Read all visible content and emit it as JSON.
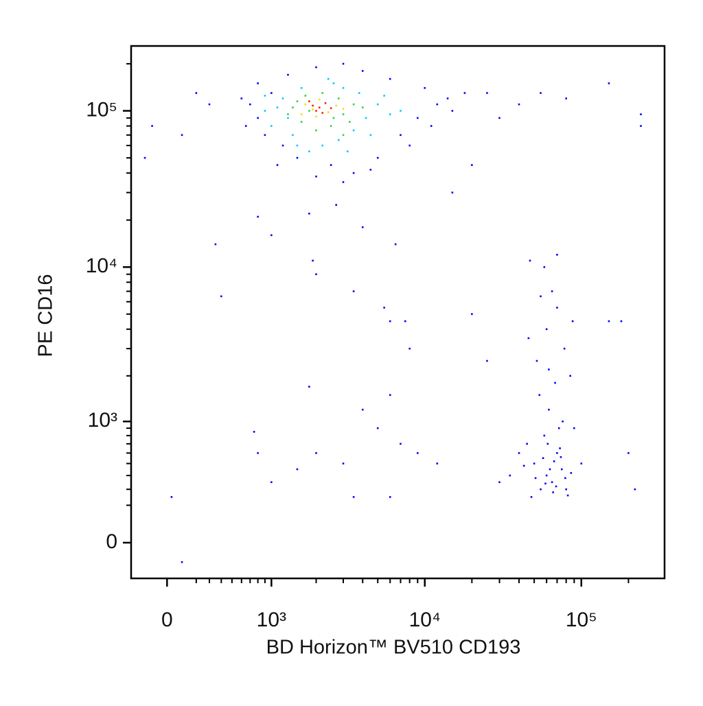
{
  "chart_data": {
    "type": "scatter",
    "x_label": "BD Horizon™ BV510 CD193",
    "y_label": "PE CD16",
    "xscale": "biexponential",
    "yscale": "biexponential",
    "xlim": [
      -250,
      340000
    ],
    "ylim": [
      -190,
      260000
    ],
    "xticks": [
      0,
      {
        "value": 1000,
        "label": "10³"
      },
      {
        "value": 10000,
        "label": "10⁴"
      },
      {
        "value": 100000,
        "label": "10⁵"
      }
    ],
    "yticks": [
      0,
      {
        "value": 1000,
        "label": "10³"
      },
      {
        "value": 10000,
        "label": "10⁴"
      },
      {
        "value": 100000,
        "label": "10⁵"
      }
    ],
    "xminorticks": [
      200,
      300,
      400,
      500,
      600,
      700,
      800,
      900,
      2000,
      3000,
      4000,
      5000,
      6000,
      7000,
      8000,
      9000,
      20000,
      30000,
      40000,
      50000,
      60000,
      70000,
      80000,
      90000,
      200000
    ],
    "yminorticks": [
      200,
      300,
      400,
      500,
      600,
      700,
      800,
      900,
      2000,
      3000,
      4000,
      5000,
      6000,
      7000,
      8000,
      9000,
      20000,
      30000,
      40000,
      50000,
      60000,
      70000,
      80000,
      90000,
      200000
    ],
    "series": [
      {
        "color": "#0000ff",
        "x": [
          700,
          800,
          900,
          1000,
          1200,
          1500,
          2500,
          3500,
          5000,
          7000,
          9000,
          12000,
          15000,
          18000,
          10000,
          6000,
          4000,
          3000,
          2000,
          1300,
          800,
          600,
          650,
          1100,
          2000,
          3000,
          4500,
          8000,
          11000,
          14000,
          25000,
          30000,
          40000,
          55000,
          80000,
          150000,
          240000,
          240000,
          200,
          300,
          -100,
          -150,
          100,
          1800,
          2700,
          4000,
          6500,
          1900,
          800,
          350,
          1000,
          15000,
          20000,
          50000,
          60000,
          70000,
          55000,
          65000,
          75000,
          80000,
          45000,
          58000,
          72000,
          62000,
          68000,
          52000,
          78000,
          60000,
          70000,
          65000,
          55000,
          85000,
          90000,
          40000,
          35000,
          30000,
          100000,
          48000,
          82000,
          66000,
          54000,
          76000,
          88000,
          46000,
          58000,
          70000,
          47000,
          62000,
          73000,
          57000,
          67000,
          61000,
          79000,
          5500,
          6000,
          7500,
          8000,
          6000,
          7000,
          5000,
          4000,
          3000,
          2000,
          1500,
          1000,
          800,
          750,
          3500,
          6000,
          9000,
          12000,
          25000,
          20000,
          150000,
          180000,
          200000,
          220000,
          30,
          100,
          2000,
          3500,
          1800,
          400,
          63000,
          69000,
          51000,
          74000,
          59000,
          86000,
          43000
        ],
        "values": [
          110000,
          90000,
          70000,
          130000,
          60000,
          50000,
          45000,
          40000,
          50000,
          70000,
          90000,
          110000,
          100000,
          130000,
          140000,
          160000,
          180000,
          200000,
          190000,
          170000,
          150000,
          120000,
          80000,
          45000,
          38000,
          35000,
          42000,
          60000,
          80000,
          120000,
          130000,
          90000,
          110000,
          130000,
          120000,
          150000,
          95000,
          80000,
          130000,
          110000,
          80000,
          50000,
          70000,
          22000,
          25000,
          18000,
          14000,
          11000,
          21000,
          14000,
          16000,
          30000,
          45000,
          500,
          400,
          600,
          300,
          350,
          450,
          300,
          700,
          800,
          900,
          1200,
          1800,
          2500,
          3000,
          4000,
          5500,
          7000,
          6500,
          2000,
          900,
          600,
          400,
          350,
          500,
          250,
          260,
          280,
          1500,
          1000,
          4500,
          3500,
          10000,
          12000,
          11000,
          2200,
          650,
          550,
          520,
          700,
          380,
          5500,
          4500,
          4500,
          3000,
          1500,
          700,
          900,
          1200,
          500,
          600,
          450,
          350,
          600,
          850,
          250,
          250,
          600,
          500,
          2500,
          5000,
          4500,
          4500,
          600,
          300,
          250,
          -100,
          9000,
          7000,
          1700,
          6500,
          450,
          320,
          380,
          560,
          340,
          420,
          480
        ]
      },
      {
        "color": "#00c8ff",
        "x": [
          900,
          1000,
          1200,
          1400,
          1600,
          2200,
          2800,
          3500,
          4200,
          5000,
          3800,
          2600,
          1100,
          1800,
          6000,
          5500,
          3000,
          1300,
          4500,
          2400,
          7000,
          900,
          1500,
          3200
        ],
        "values": [
          100000,
          80000,
          120000,
          70000,
          140000,
          60000,
          65000,
          75000,
          90000,
          110000,
          130000,
          150000,
          105000,
          55000,
          95000,
          125000,
          140000,
          90000,
          70000,
          160000,
          100000,
          125000,
          60000,
          55000
        ]
      },
      {
        "color": "#30d040",
        "x": [
          1300,
          1600,
          2000,
          2500,
          3000,
          3500,
          2800,
          2200,
          1500,
          1800,
          3300,
          4000,
          1400,
          2600,
          1700,
          3000
        ],
        "values": [
          95000,
          85000,
          75000,
          80000,
          95000,
          110000,
          120000,
          130000,
          115000,
          100000,
          85000,
          105000,
          105000,
          90000,
          125000,
          70000
        ]
      },
      {
        "color": "#f0e000",
        "x": [
          1700,
          2000,
          2400,
          2700,
          2100,
          1900,
          3000,
          1600
        ],
        "values": [
          110000,
          92000,
          98000,
          108000,
          118000,
          102000,
          103000,
          95000
        ]
      },
      {
        "color": "#ff2000",
        "x": [
          1900,
          2100,
          2300,
          2000,
          2500,
          1800,
          2200
        ],
        "values": [
          108000,
          105000,
          112000,
          100000,
          104000,
          115000,
          97000
        ]
      }
    ]
  }
}
